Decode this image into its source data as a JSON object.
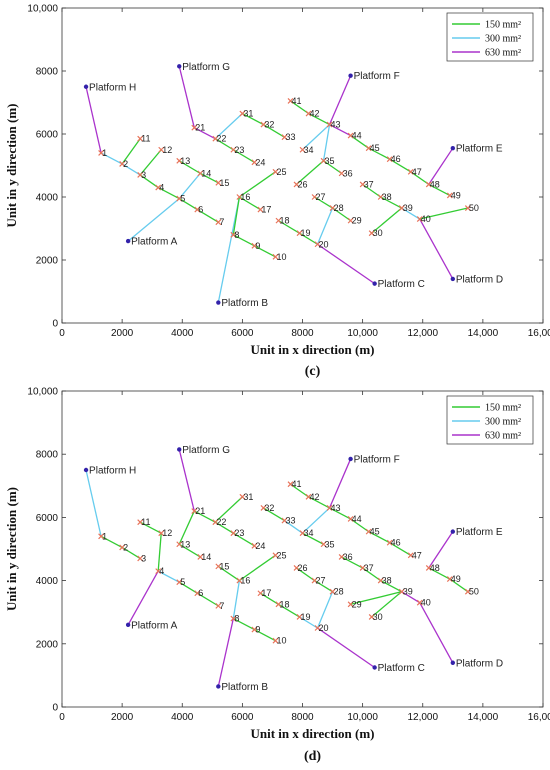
{
  "chart_data": [
    {
      "type": "line",
      "subfigure_label": "(c)",
      "xlabel": "Unit in x direction (m)",
      "ylabel": "Unit in y direction (m)",
      "xlim": [
        0,
        16000
      ],
      "ylim": [
        0,
        10000
      ],
      "xticks": [
        "0",
        "2000",
        "4000",
        "6000",
        "8000",
        "10,000",
        "12,000",
        "14,000",
        "16,000"
      ],
      "yticks": [
        "0",
        "2000",
        "4000",
        "6000",
        "8000",
        "10,000"
      ],
      "legend": {
        "position": "top-right",
        "entries": [
          {
            "key": "150",
            "label": "150 mm²",
            "color": "#33cc33"
          },
          {
            "key": "300",
            "label": "300 mm²",
            "color": "#66ccee"
          },
          {
            "key": "630",
            "label": "630 mm²",
            "color": "#aa33cc"
          }
        ]
      },
      "platforms": [
        {
          "name": "Platform A",
          "x": 2200,
          "y": 2600
        },
        {
          "name": "Platform B",
          "x": 5200,
          "y": 650
        },
        {
          "name": "Platform C",
          "x": 10400,
          "y": 1250
        },
        {
          "name": "Platform D",
          "x": 13000,
          "y": 1400
        },
        {
          "name": "Platform E",
          "x": 13000,
          "y": 5550
        },
        {
          "name": "Platform F",
          "x": 9600,
          "y": 7850
        },
        {
          "name": "Platform G",
          "x": 3900,
          "y": 8150
        },
        {
          "name": "Platform H",
          "x": 800,
          "y": 7500
        }
      ],
      "nodes": [
        {
          "id": "1",
          "x": 1300,
          "y": 5400
        },
        {
          "id": "2",
          "x": 2000,
          "y": 5050
        },
        {
          "id": "3",
          "x": 2600,
          "y": 4700
        },
        {
          "id": "4",
          "x": 3200,
          "y": 4300
        },
        {
          "id": "5",
          "x": 3900,
          "y": 3950
        },
        {
          "id": "6",
          "x": 4500,
          "y": 3600
        },
        {
          "id": "7",
          "x": 5200,
          "y": 3200
        },
        {
          "id": "8",
          "x": 5700,
          "y": 2800
        },
        {
          "id": "9",
          "x": 6400,
          "y": 2450
        },
        {
          "id": "10",
          "x": 7100,
          "y": 2100
        },
        {
          "id": "11",
          "x": 2600,
          "y": 5850
        },
        {
          "id": "12",
          "x": 3300,
          "y": 5500
        },
        {
          "id": "13",
          "x": 3900,
          "y": 5150
        },
        {
          "id": "14",
          "x": 4600,
          "y": 4750
        },
        {
          "id": "15",
          "x": 5200,
          "y": 4450
        },
        {
          "id": "16",
          "x": 5900,
          "y": 4000
        },
        {
          "id": "17",
          "x": 6600,
          "y": 3600
        },
        {
          "id": "18",
          "x": 7200,
          "y": 3250
        },
        {
          "id": "19",
          "x": 7900,
          "y": 2850
        },
        {
          "id": "20",
          "x": 8500,
          "y": 2500
        },
        {
          "id": "21",
          "x": 4400,
          "y": 6200
        },
        {
          "id": "22",
          "x": 5100,
          "y": 5850
        },
        {
          "id": "23",
          "x": 5700,
          "y": 5500
        },
        {
          "id": "24",
          "x": 6400,
          "y": 5100
        },
        {
          "id": "25",
          "x": 7100,
          "y": 4800
        },
        {
          "id": "26",
          "x": 7800,
          "y": 4400
        },
        {
          "id": "27",
          "x": 8400,
          "y": 4000
        },
        {
          "id": "28",
          "x": 9000,
          "y": 3650
        },
        {
          "id": "29",
          "x": 9600,
          "y": 3250
        },
        {
          "id": "30",
          "x": 10300,
          "y": 2850
        },
        {
          "id": "31",
          "x": 6000,
          "y": 6650
        },
        {
          "id": "32",
          "x": 6700,
          "y": 6300
        },
        {
          "id": "33",
          "x": 7400,
          "y": 5900
        },
        {
          "id": "34",
          "x": 8000,
          "y": 5500
        },
        {
          "id": "35",
          "x": 8700,
          "y": 5150
        },
        {
          "id": "36",
          "x": 9300,
          "y": 4750
        },
        {
          "id": "37",
          "x": 10000,
          "y": 4400
        },
        {
          "id": "38",
          "x": 10600,
          "y": 4000
        },
        {
          "id": "39",
          "x": 11300,
          "y": 3650
        },
        {
          "id": "40",
          "x": 11900,
          "y": 3300
        },
        {
          "id": "41",
          "x": 7600,
          "y": 7050
        },
        {
          "id": "42",
          "x": 8200,
          "y": 6650
        },
        {
          "id": "43",
          "x": 8900,
          "y": 6300
        },
        {
          "id": "44",
          "x": 9600,
          "y": 5950
        },
        {
          "id": "45",
          "x": 10200,
          "y": 5550
        },
        {
          "id": "46",
          "x": 10900,
          "y": 5200
        },
        {
          "id": "47",
          "x": 11600,
          "y": 4800
        },
        {
          "id": "48",
          "x": 12200,
          "y": 4400
        },
        {
          "id": "49",
          "x": 12900,
          "y": 4050
        },
        {
          "id": "50",
          "x": 13500,
          "y": 3650
        }
      ],
      "edges": [
        [
          "Platform H",
          "1",
          "630"
        ],
        [
          "1",
          "2",
          "300"
        ],
        [
          "2",
          "3",
          "300"
        ],
        [
          "3",
          "4",
          "150"
        ],
        [
          "2",
          "11",
          "150"
        ],
        [
          "3",
          "12",
          "150"
        ],
        [
          "Platform A",
          "5",
          "300"
        ],
        [
          "5",
          "4",
          "150"
        ],
        [
          "5",
          "6",
          "150"
        ],
        [
          "6",
          "7",
          "150"
        ],
        [
          "5",
          "14",
          "300"
        ],
        [
          "13",
          "14",
          "150"
        ],
        [
          "14",
          "15",
          "150"
        ],
        [
          "Platform G",
          "21",
          "630"
        ],
        [
          "21",
          "22",
          "630"
        ],
        [
          "22",
          "31",
          "300"
        ],
        [
          "31",
          "32",
          "150"
        ],
        [
          "32",
          "33",
          "150"
        ],
        [
          "22",
          "23",
          "150"
        ],
        [
          "23",
          "24",
          "150"
        ],
        [
          "Platform B",
          "16",
          "300"
        ],
        [
          "16",
          "8",
          "150"
        ],
        [
          "8",
          "9",
          "150"
        ],
        [
          "9",
          "10",
          "150"
        ],
        [
          "16",
          "17",
          "150"
        ],
        [
          "16",
          "25",
          "150"
        ],
        [
          "18",
          "19",
          "150"
        ],
        [
          "19",
          "20",
          "150"
        ],
        [
          "Platform C",
          "20",
          "630"
        ],
        [
          "20",
          "28",
          "300"
        ],
        [
          "27",
          "28",
          "150"
        ],
        [
          "28",
          "29",
          "150"
        ],
        [
          "Platform F",
          "43",
          "630"
        ],
        [
          "43",
          "34",
          "300"
        ],
        [
          "41",
          "42",
          "150"
        ],
        [
          "42",
          "43",
          "150"
        ],
        [
          "43",
          "35",
          "300"
        ],
        [
          "35",
          "26",
          "150"
        ],
        [
          "35",
          "36",
          "150"
        ],
        [
          "43",
          "44",
          "630"
        ],
        [
          "44",
          "45",
          "150"
        ],
        [
          "45",
          "46",
          "150"
        ],
        [
          "46",
          "47",
          "150"
        ],
        [
          "47",
          "48",
          "150"
        ],
        [
          "48",
          "49",
          "150"
        ],
        [
          "Platform E",
          "48",
          "630"
        ],
        [
          "Platform D",
          "40",
          "630"
        ],
        [
          "40",
          "39",
          "300"
        ],
        [
          "39",
          "38",
          "150"
        ],
        [
          "38",
          "37",
          "150"
        ],
        [
          "39",
          "30",
          "150"
        ],
        [
          "40",
          "50",
          "150"
        ]
      ]
    },
    {
      "type": "line",
      "subfigure_label": "(d)",
      "xlabel": "Unit in x direction (m)",
      "ylabel": "Unit in y direction (m)",
      "xlim": [
        0,
        16000
      ],
      "ylim": [
        0,
        10000
      ],
      "xticks": [
        "0",
        "2000",
        "4000",
        "6000",
        "8000",
        "10,000",
        "12,000",
        "14,000",
        "16,000"
      ],
      "yticks": [
        "0",
        "2000",
        "4000",
        "6000",
        "8000",
        "10,000"
      ],
      "legend": {
        "position": "top-right",
        "entries": [
          {
            "key": "150",
            "label": "150 mm²",
            "color": "#33cc33"
          },
          {
            "key": "300",
            "label": "300 mm²",
            "color": "#66ccee"
          },
          {
            "key": "630",
            "label": "630 mm²",
            "color": "#aa33cc"
          }
        ]
      },
      "platforms": [
        {
          "name": "Platform A",
          "x": 2200,
          "y": 2600
        },
        {
          "name": "Platform B",
          "x": 5200,
          "y": 650
        },
        {
          "name": "Platform C",
          "x": 10400,
          "y": 1250
        },
        {
          "name": "Platform D",
          "x": 13000,
          "y": 1400
        },
        {
          "name": "Platform E",
          "x": 13000,
          "y": 5550
        },
        {
          "name": "Platform F",
          "x": 9600,
          "y": 7850
        },
        {
          "name": "Platform G",
          "x": 3900,
          "y": 8150
        },
        {
          "name": "Platform H",
          "x": 800,
          "y": 7500
        }
      ],
      "nodes": [
        {
          "id": "1",
          "x": 1300,
          "y": 5400
        },
        {
          "id": "2",
          "x": 2000,
          "y": 5050
        },
        {
          "id": "3",
          "x": 2600,
          "y": 4700
        },
        {
          "id": "4",
          "x": 3200,
          "y": 4300
        },
        {
          "id": "5",
          "x": 3900,
          "y": 3950
        },
        {
          "id": "6",
          "x": 4500,
          "y": 3600
        },
        {
          "id": "7",
          "x": 5200,
          "y": 3200
        },
        {
          "id": "8",
          "x": 5700,
          "y": 2800
        },
        {
          "id": "9",
          "x": 6400,
          "y": 2450
        },
        {
          "id": "10",
          "x": 7100,
          "y": 2100
        },
        {
          "id": "11",
          "x": 2600,
          "y": 5850
        },
        {
          "id": "12",
          "x": 3300,
          "y": 5500
        },
        {
          "id": "13",
          "x": 3900,
          "y": 5150
        },
        {
          "id": "14",
          "x": 4600,
          "y": 4750
        },
        {
          "id": "15",
          "x": 5200,
          "y": 4450
        },
        {
          "id": "16",
          "x": 5900,
          "y": 4000
        },
        {
          "id": "17",
          "x": 6600,
          "y": 3600
        },
        {
          "id": "18",
          "x": 7200,
          "y": 3250
        },
        {
          "id": "19",
          "x": 7900,
          "y": 2850
        },
        {
          "id": "20",
          "x": 8500,
          "y": 2500
        },
        {
          "id": "21",
          "x": 4400,
          "y": 6200
        },
        {
          "id": "22",
          "x": 5100,
          "y": 5850
        },
        {
          "id": "23",
          "x": 5700,
          "y": 5500
        },
        {
          "id": "24",
          "x": 6400,
          "y": 5100
        },
        {
          "id": "25",
          "x": 7100,
          "y": 4800
        },
        {
          "id": "26",
          "x": 7800,
          "y": 4400
        },
        {
          "id": "27",
          "x": 8400,
          "y": 4000
        },
        {
          "id": "28",
          "x": 9000,
          "y": 3650
        },
        {
          "id": "29",
          "x": 9600,
          "y": 3250
        },
        {
          "id": "30",
          "x": 10300,
          "y": 2850
        },
        {
          "id": "31",
          "x": 6000,
          "y": 6650
        },
        {
          "id": "32",
          "x": 6700,
          "y": 6300
        },
        {
          "id": "33",
          "x": 7400,
          "y": 5900
        },
        {
          "id": "34",
          "x": 8000,
          "y": 5500
        },
        {
          "id": "35",
          "x": 8700,
          "y": 5150
        },
        {
          "id": "36",
          "x": 9300,
          "y": 4750
        },
        {
          "id": "37",
          "x": 10000,
          "y": 4400
        },
        {
          "id": "38",
          "x": 10600,
          "y": 4000
        },
        {
          "id": "39",
          "x": 11300,
          "y": 3650
        },
        {
          "id": "40",
          "x": 11900,
          "y": 3300
        },
        {
          "id": "41",
          "x": 7600,
          "y": 7050
        },
        {
          "id": "42",
          "x": 8200,
          "y": 6650
        },
        {
          "id": "43",
          "x": 8900,
          "y": 6300
        },
        {
          "id": "44",
          "x": 9600,
          "y": 5950
        },
        {
          "id": "45",
          "x": 10200,
          "y": 5550
        },
        {
          "id": "46",
          "x": 10900,
          "y": 5200
        },
        {
          "id": "47",
          "x": 11600,
          "y": 4800
        },
        {
          "id": "48",
          "x": 12200,
          "y": 4400
        },
        {
          "id": "49",
          "x": 12900,
          "y": 4050
        },
        {
          "id": "50",
          "x": 13500,
          "y": 3650
        }
      ],
      "edges": [
        [
          "Platform H",
          "1",
          "300"
        ],
        [
          "1",
          "2",
          "150"
        ],
        [
          "2",
          "3",
          "150"
        ],
        [
          "11",
          "12",
          "150"
        ],
        [
          "12",
          "4",
          "150"
        ],
        [
          "Platform A",
          "4",
          "630"
        ],
        [
          "4",
          "5",
          "300"
        ],
        [
          "5",
          "6",
          "150"
        ],
        [
          "6",
          "7",
          "150"
        ],
        [
          "Platform G",
          "21",
          "630"
        ],
        [
          "21",
          "13",
          "150"
        ],
        [
          "13",
          "14",
          "150"
        ],
        [
          "21",
          "22",
          "150"
        ],
        [
          "22",
          "31",
          "150"
        ],
        [
          "22",
          "23",
          "150"
        ],
        [
          "23",
          "24",
          "150"
        ],
        [
          "15",
          "16",
          "150"
        ],
        [
          "Platform B",
          "8",
          "630"
        ],
        [
          "8",
          "16",
          "300"
        ],
        [
          "8",
          "9",
          "150"
        ],
        [
          "9",
          "10",
          "150"
        ],
        [
          "16",
          "25",
          "150"
        ],
        [
          "17",
          "18",
          "150"
        ],
        [
          "18",
          "19",
          "150"
        ],
        [
          "19",
          "20",
          "300"
        ],
        [
          "Platform C",
          "20",
          "630"
        ],
        [
          "20",
          "28",
          "300"
        ],
        [
          "26",
          "27",
          "150"
        ],
        [
          "27",
          "28",
          "150"
        ],
        [
          "Platform F",
          "43",
          "630"
        ],
        [
          "41",
          "42",
          "150"
        ],
        [
          "42",
          "43",
          "150"
        ],
        [
          "32",
          "33",
          "150"
        ],
        [
          "33",
          "34",
          "300"
        ],
        [
          "34",
          "43",
          "300"
        ],
        [
          "34",
          "35",
          "150"
        ],
        [
          "43",
          "44",
          "150"
        ],
        [
          "44",
          "45",
          "150"
        ],
        [
          "45",
          "46",
          "150"
        ],
        [
          "46",
          "47",
          "150"
        ],
        [
          "Platform E",
          "48",
          "630"
        ],
        [
          "48",
          "49",
          "150"
        ],
        [
          "49",
          "50",
          "150"
        ],
        [
          "Platform D",
          "40",
          "630"
        ],
        [
          "40",
          "39",
          "630"
        ],
        [
          "39",
          "38",
          "150"
        ],
        [
          "38",
          "37",
          "150"
        ],
        [
          "37",
          "36",
          "150"
        ],
        [
          "39",
          "29",
          "150"
        ],
        [
          "39",
          "30",
          "150"
        ]
      ]
    }
  ]
}
